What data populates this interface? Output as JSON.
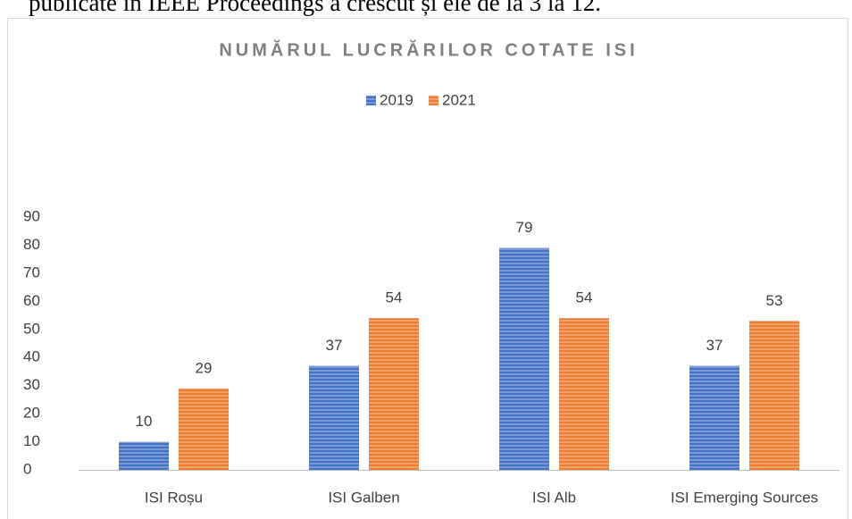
{
  "text_above": "publicate în IEEE Proceedings a crescut și ele de la 3 la 12.",
  "chart_data": {
    "type": "bar",
    "title": "NUMĂRUL LUCRĂRILOR COTATE ISI",
    "categories": [
      "ISI Roșu",
      "ISI Galben",
      "ISI Alb",
      "ISI Emerging Sources"
    ],
    "series": [
      {
        "name": "2019",
        "color": "#4472c4",
        "values": [
          10,
          37,
          79,
          37
        ]
      },
      {
        "name": "2021",
        "color": "#ed7d31",
        "values": [
          29,
          54,
          54,
          53
        ]
      }
    ],
    "ylim": [
      0,
      90
    ],
    "yticks": [
      0,
      10,
      20,
      30,
      40,
      50,
      60,
      70,
      80,
      90
    ],
    "grid": false,
    "legend": "top"
  }
}
